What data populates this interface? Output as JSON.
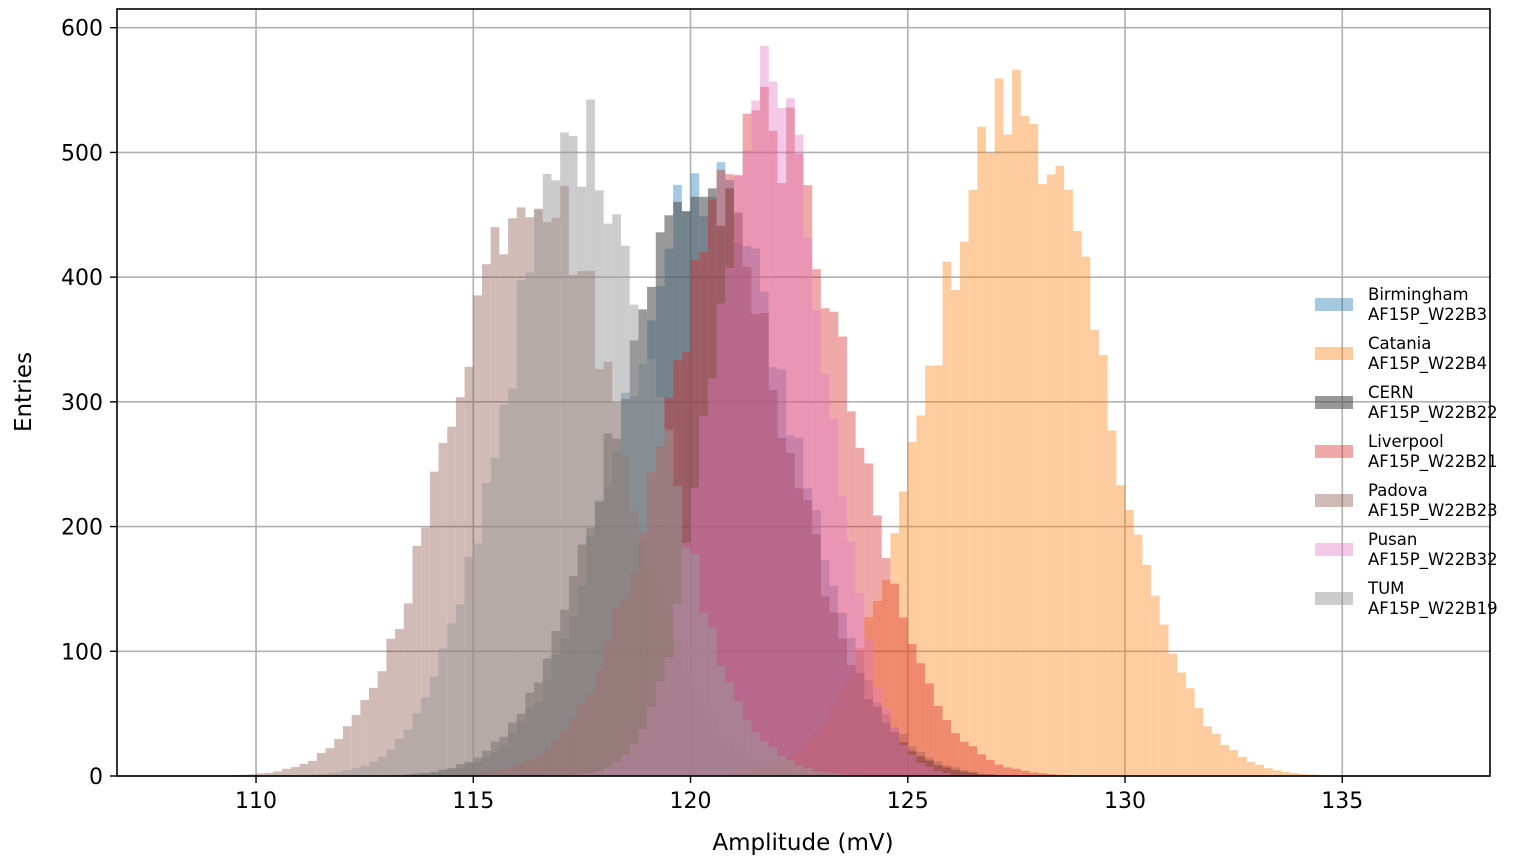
{
  "chart_data": {
    "type": "bar",
    "title": "",
    "xlabel": "Amplitude (mV)",
    "ylabel": "Entries",
    "xlim": [
      106.8,
      138.4
    ],
    "ylim": [
      0,
      615
    ],
    "xticks": [
      110,
      115,
      120,
      125,
      130,
      135
    ],
    "yticks": [
      0,
      100,
      200,
      300,
      400,
      500,
      600
    ],
    "grid": true,
    "legend_position": "right",
    "bin_width": 0.2,
    "series": [
      {
        "name": "Birmingham\nAF15P_W22B3",
        "color": "#1f77b4",
        "opacity": 0.4,
        "mean": 120.4,
        "sigma": 1.95,
        "peak": 470,
        "min": 112.5,
        "max": 126.5
      },
      {
        "name": "Catania\nAF15P_W22B4",
        "color": "#ff7f0e",
        "opacity": 0.4,
        "mean": 127.5,
        "sigma": 1.95,
        "peak": 540,
        "min": 119.5,
        "max": 137.5
      },
      {
        "name": "CERN\nAF15P_W22B22",
        "color": "#555555",
        "opacity": 0.6,
        "mean": 120.2,
        "sigma": 1.95,
        "peak": 470,
        "min": 112.0,
        "max": 128.5
      },
      {
        "name": "Liverpool\nAF15P_W22B21",
        "color": "#d62728",
        "opacity": 0.4,
        "mean": 121.6,
        "sigma": 1.95,
        "peak": 530,
        "min": 113.0,
        "max": 129.0
      },
      {
        "name": "Padova\nAF15P_W22B23",
        "color": "#8c564b",
        "opacity": 0.4,
        "mean": 116.4,
        "sigma": 1.9,
        "peak": 480,
        "min": 108.0,
        "max": 124.0
      },
      {
        "name": "Pusan\nAF15P_W22B32",
        "color": "#e377c2",
        "opacity": 0.4,
        "mean": 121.8,
        "sigma": 1.25,
        "peak": 560,
        "min": 117.0,
        "max": 126.0
      },
      {
        "name": "TUM\nAF15P_W22B19",
        "color": "#999999",
        "opacity": 0.5,
        "mean": 117.5,
        "sigma": 1.75,
        "peak": 510,
        "min": 110.5,
        "max": 124.0
      }
    ]
  }
}
